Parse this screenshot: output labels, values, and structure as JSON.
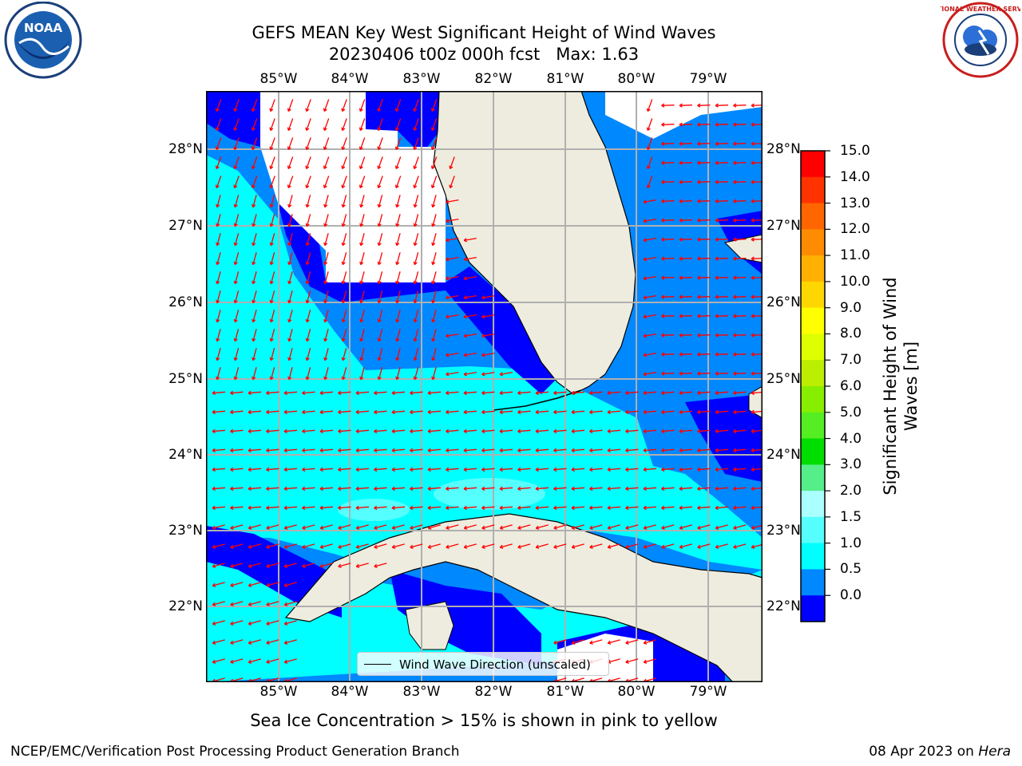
{
  "title": {
    "line1": "GEFS MEAN Key West Significant Height of Wind Waves",
    "line2": "20230406 t00z 000h fcst   Max: 1.63"
  },
  "map": {
    "lon_labels": [
      "85°W",
      "84°W",
      "83°W",
      "82°W",
      "81°W",
      "80°W",
      "79°W"
    ],
    "lat_labels": [
      "28°N",
      "27°N",
      "26°N",
      "25°N",
      "24°N",
      "23°N",
      "22°N"
    ],
    "land_color": "#eeecde",
    "arrow_color": "#ff0000",
    "grid_color": "#b0b0b0"
  },
  "legend": {
    "label": "Wind Wave Direction (unscaled)"
  },
  "colorbar": {
    "label_line1": "Significant Height of Wind",
    "label_line2": "Waves [m]",
    "ticks": [
      "15.0",
      "14.0",
      "13.0",
      "12.0",
      "11.0",
      "10.0",
      "9.0",
      "8.0",
      "7.0",
      "6.0",
      "5.0",
      "4.0",
      "3.0",
      "2.0",
      "1.5",
      "1.0",
      "0.5",
      "0.0"
    ],
    "colors": [
      "#ff0000",
      "#ff3300",
      "#ff6600",
      "#ff8c00",
      "#ffb000",
      "#ffd700",
      "#ffff00",
      "#ddff00",
      "#bbee00",
      "#88ee00",
      "#55ee22",
      "#00dd00",
      "#55ee88",
      "#aaffff",
      "#55ffff",
      "#00ffff",
      "#0088ff",
      "#0000ff"
    ]
  },
  "subtitle": "Sea Ice Concentration > 15% is shown in pink to yellow",
  "footer": {
    "left": "NCEP/EMC/Verification Post Processing Product Generation Branch",
    "date": "08 Apr 2023 on ",
    "host": "Hera"
  },
  "logos": {
    "left": "NOAA",
    "right": "NATIONAL WEATHER SERVICE"
  }
}
